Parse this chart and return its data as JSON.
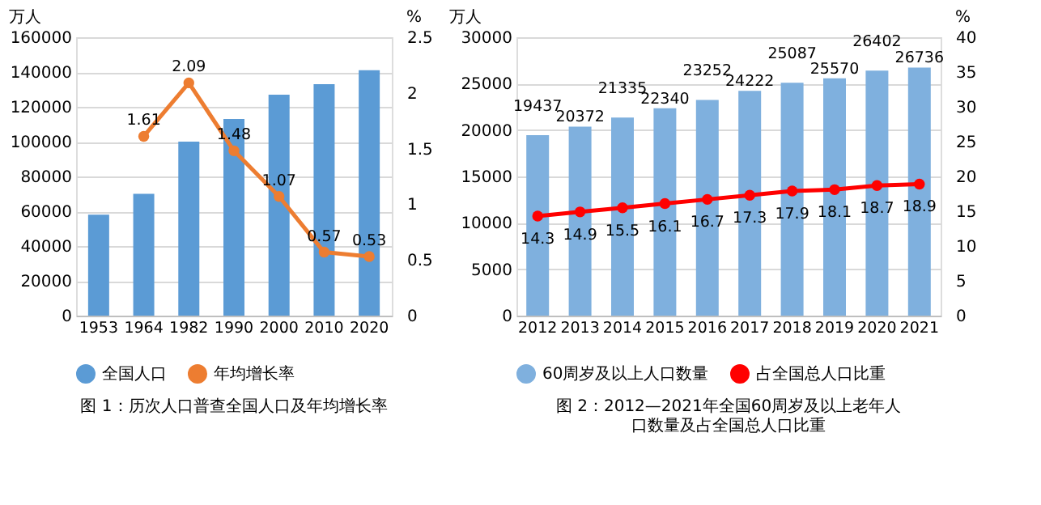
{
  "chart_data": [
    {
      "type": "bar",
      "categories": [
        "1953",
        "1964",
        "1982",
        "1990",
        "2000",
        "2010",
        "2020"
      ],
      "ylabel": "万人",
      "y2label": "%",
      "ylim": [
        0,
        160000
      ],
      "yticks": [
        0,
        20000,
        40000,
        60000,
        80000,
        100000,
        120000,
        140000,
        160000
      ],
      "y2lim": [
        0,
        2.5
      ],
      "y2ticks": [
        0,
        0.5,
        1,
        1.5,
        2,
        2.5
      ],
      "grid": "y",
      "legend": "bottom",
      "marker": "circle",
      "series": [
        {
          "name": "全国人口",
          "color": "#5b9bd5",
          "values": [
            58000,
            70000,
            100000,
            113000,
            127000,
            133000,
            141000
          ]
        },
        {
          "name": "年均增长率",
          "type": "line",
          "axis": "y2",
          "color": "#ed7d31",
          "values": [
            null,
            1.61,
            2.09,
            1.48,
            1.07,
            0.57,
            0.53
          ],
          "value_labels": [
            null,
            "1.61",
            "2.09",
            "1.48",
            "1.07",
            "0.57",
            "0.53"
          ]
        }
      ],
      "annotations": [
        "图 1：历次人口普查全国人口及年均增长率"
      ]
    },
    {
      "type": "bar",
      "categories": [
        "2012",
        "2013",
        "2014",
        "2015",
        "2016",
        "2017",
        "2018",
        "2019",
        "2020",
        "2021"
      ],
      "ylabel": "万人",
      "y2label": "%",
      "ylim": [
        0,
        30000
      ],
      "yticks": [
        0,
        5000,
        10000,
        15000,
        20000,
        25000,
        30000
      ],
      "y2lim": [
        0,
        40
      ],
      "y2ticks": [
        0,
        5,
        10,
        15,
        20,
        25,
        30,
        35,
        40
      ],
      "grid": "y",
      "legend": "bottom",
      "marker": "circle",
      "data_labels": true,
      "series": [
        {
          "name": "60周岁及以上人口数量",
          "color": "#7fb0de",
          "values": [
            19437,
            20372,
            21335,
            22340,
            23252,
            24222,
            25087,
            25570,
            26402,
            26736
          ]
        },
        {
          "name": "占全国总人口比重",
          "type": "line",
          "axis": "y2",
          "color": "#ff0000",
          "values": [
            14.3,
            14.9,
            15.5,
            16.1,
            16.7,
            17.3,
            17.9,
            18.1,
            18.7,
            18.9
          ]
        }
      ],
      "annotations": [
        "图 2：2012—2021年全国60周岁及以上老年人口数量及占全国总人口比重"
      ]
    }
  ]
}
